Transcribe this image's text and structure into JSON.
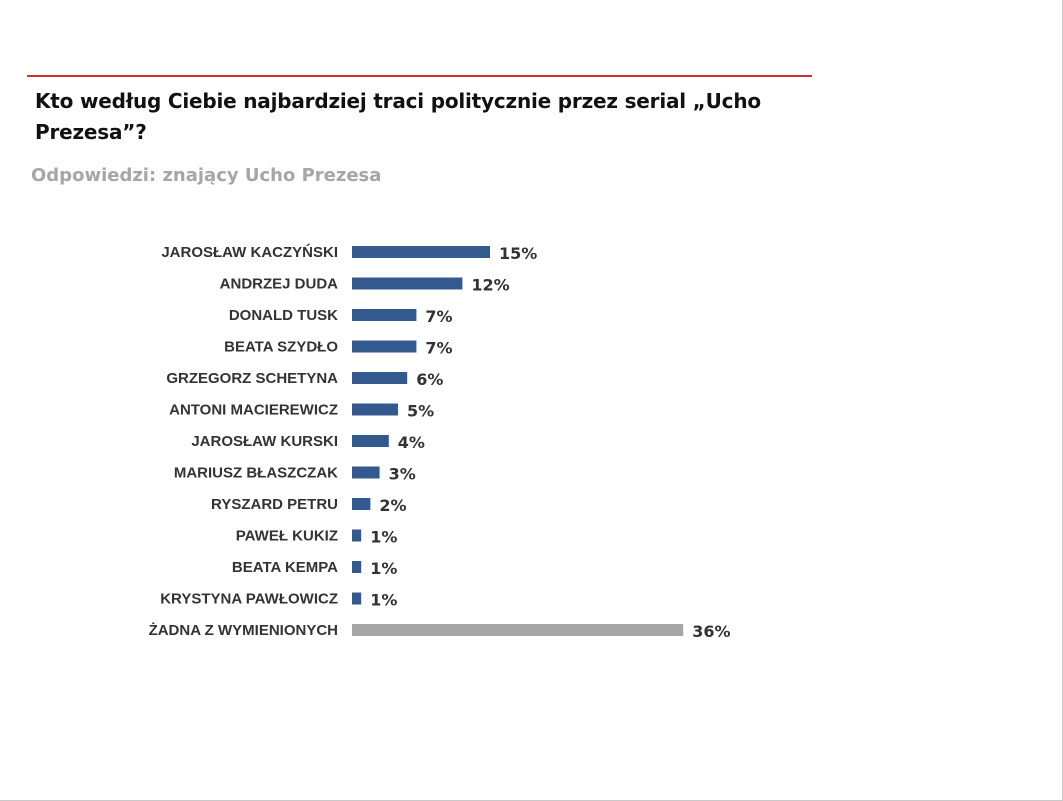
{
  "header": {
    "title": "Kto według Ciebie najbardziej traci politycznie przez serial „Ucho Prezesa”?",
    "subtitle": "Odpowiedzi: znający Ucho Prezesa"
  },
  "colors": {
    "accent_rule": "#d0312d",
    "bar_primary": "#34598f",
    "bar_other": "#a6a6a6"
  },
  "chart_data": {
    "type": "bar",
    "orientation": "horizontal",
    "title": "Kto według Ciebie najbardziej traci politycznie przez serial „Ucho Prezesa”?",
    "subtitle": "Odpowiedzi: znający Ucho Prezesa",
    "xlabel": "",
    "ylabel": "",
    "unit": "%",
    "grid": false,
    "legend": "none",
    "xlim": [
      0,
      36
    ],
    "categories": [
      "JAROSŁAW KACZYŃSKI",
      "ANDRZEJ DUDA",
      "DONALD TUSK",
      "BEATA SZYDŁO",
      "GRZEGORZ SCHETYNA",
      "ANTONI MACIEREWICZ",
      "JAROSŁAW KURSKI",
      "MARIUSZ BŁASZCZAK",
      "RYSZARD PETRU",
      "PAWEŁ KUKIZ",
      "BEATA KEMPA",
      "KRYSTYNA PAWŁOWICZ",
      "ŻADNA Z WYMIENIONYCH"
    ],
    "values": [
      15,
      12,
      7,
      7,
      6,
      5,
      4,
      3,
      2,
      1,
      1,
      1,
      36
    ],
    "value_labels": [
      "15%",
      "12%",
      "7%",
      "7%",
      "6%",
      "5%",
      "4%",
      "3%",
      "2%",
      "1%",
      "1%",
      "1%",
      "36%"
    ],
    "highlight": [
      false,
      false,
      false,
      false,
      false,
      false,
      false,
      false,
      false,
      false,
      false,
      false,
      true
    ]
  }
}
